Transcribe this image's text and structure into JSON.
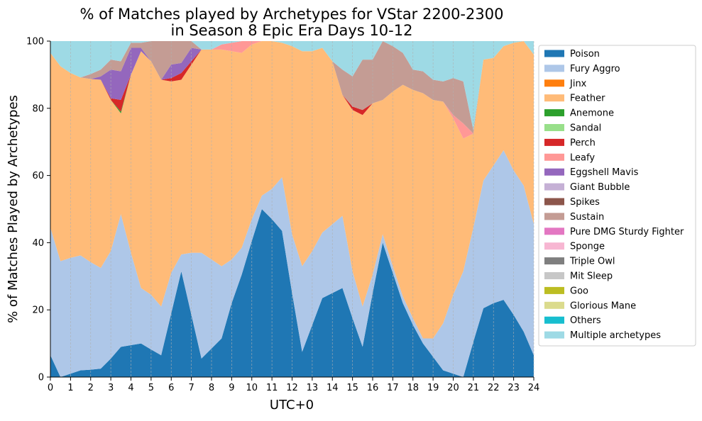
{
  "chart_data": {
    "type": "area",
    "stacked": true,
    "title": [
      "% of Matches played by Archetypes for VStar 2200-2300",
      "in Season 8 Epic Era Days 10-12"
    ],
    "xlabel": "UTC+0",
    "ylabel": "% of Matches Played by Archetypes",
    "xlim": [
      0,
      24
    ],
    "ylim": [
      0,
      100
    ],
    "xticks": [
      "0",
      "1",
      "2",
      "3",
      "4",
      "5",
      "6",
      "7",
      "8",
      "9",
      "10",
      "11",
      "12",
      "13",
      "14",
      "15",
      "16",
      "17",
      "18",
      "19",
      "20",
      "21",
      "22",
      "23",
      "24"
    ],
    "yticks": [
      "0",
      "20",
      "40",
      "60",
      "80",
      "100"
    ],
    "grid": "vertical dashed",
    "legend_position": "right outside",
    "x": [
      0,
      0.5,
      1,
      1.5,
      2,
      2.5,
      3,
      3.5,
      4,
      4.5,
      5,
      5.5,
      6,
      6.5,
      7,
      7.5,
      8,
      8.5,
      9,
      9.5,
      10,
      10.5,
      11,
      11.5,
      12,
      12.5,
      13,
      13.5,
      14,
      14.5,
      15,
      15.5,
      16,
      16.5,
      17,
      17.5,
      18,
      18.5,
      19,
      19.5,
      20,
      20.5,
      21,
      21.5,
      22,
      22.5,
      23,
      23.5,
      24
    ],
    "series": [
      {
        "name": "Poison",
        "color": "#1f77b4",
        "values": [
          6.5,
          0,
          1,
          2,
          2.2,
          2.5,
          5.5,
          9,
          9.5,
          10,
          8.2,
          6.5,
          19,
          31.5,
          18.5,
          5.5,
          8.5,
          11.5,
          22,
          30.5,
          40.5,
          50,
          47,
          43.5,
          25,
          7.5,
          15.5,
          23.5,
          25,
          26.5,
          17.5,
          9,
          25,
          40,
          31,
          22,
          15.5,
          10,
          6,
          2,
          1,
          0,
          10.5,
          20.5,
          22,
          23,
          18.5,
          13.5,
          6.5
        ]
      },
      {
        "name": "Fury Aggro",
        "color": "#aec7e8",
        "values": [
          38,
          34.5,
          34.5,
          34.2,
          32,
          30,
          32,
          39.5,
          27.5,
          16.5,
          16.3,
          14.5,
          12,
          5,
          18.5,
          31.5,
          26.5,
          21.5,
          13,
          8,
          6.5,
          4,
          9,
          16,
          17.5,
          25.5,
          22,
          19.5,
          20.5,
          21.5,
          14,
          12,
          5.5,
          2.5,
          2,
          2,
          2,
          1.5,
          5.5,
          14,
          23.5,
          31.5,
          34,
          38,
          41,
          44.5,
          43,
          43.5,
          39
        ]
      },
      {
        "name": "Jinx",
        "color": "#ff7f0e",
        "values": [
          0,
          0,
          0,
          0,
          0,
          0,
          0,
          0,
          0,
          0,
          0,
          0,
          0,
          0,
          0,
          0,
          0,
          0,
          0,
          0,
          0,
          0,
          0,
          0,
          0,
          0,
          0,
          0,
          0,
          0,
          0,
          0,
          0,
          0,
          0,
          0,
          0,
          0,
          0,
          0,
          0,
          0,
          0,
          0,
          0,
          0,
          0,
          0,
          0
        ]
      },
      {
        "name": "Feather",
        "color": "#ffbb78",
        "values": [
          52,
          58,
          55,
          53,
          54.5,
          56,
          45,
          30,
          53,
          70.5,
          69.5,
          67.5,
          57,
          52,
          56,
          60.5,
          62.5,
          64.5,
          62,
          58,
          52,
          46,
          44,
          40,
          56,
          64,
          59.5,
          55,
          48.5,
          36,
          48,
          57,
          51,
          40,
          52,
          63,
          68,
          73,
          71,
          66,
          52.5,
          39.5,
          28,
          36,
          32,
          31,
          38,
          43,
          50.5
        ]
      },
      {
        "name": "Anemone",
        "color": "#2ca02c",
        "values": [
          0,
          0,
          0,
          0,
          0,
          0,
          0,
          0.5,
          0,
          0,
          0,
          0,
          0,
          0,
          0,
          0,
          0,
          0,
          0,
          0,
          0,
          0,
          0,
          0,
          0,
          0,
          0,
          0,
          0,
          0,
          0,
          0,
          0,
          0,
          0,
          0,
          0,
          0,
          0,
          0,
          0,
          0,
          0,
          0,
          0,
          0,
          0,
          0,
          0
        ]
      },
      {
        "name": "Sandal",
        "color": "#98df8a",
        "values": [
          0,
          0,
          0,
          0,
          0,
          0,
          0,
          0,
          0,
          0,
          0,
          0,
          0,
          0,
          0,
          0,
          0,
          0,
          0,
          0,
          0,
          0,
          0,
          0,
          0,
          0,
          0,
          0,
          0,
          0,
          0,
          0,
          0,
          0,
          0,
          0,
          0,
          0,
          0,
          0,
          0,
          0,
          0,
          0,
          0,
          0,
          0,
          0,
          0
        ]
      },
      {
        "name": "Perch",
        "color": "#d62728",
        "values": [
          0,
          0,
          0,
          0,
          0,
          0,
          0.5,
          3.5,
          0,
          0,
          0,
          0,
          1,
          2,
          1,
          0,
          0,
          0,
          0,
          0,
          0,
          0,
          0,
          0,
          0,
          0,
          0,
          0,
          0,
          0,
          1,
          1.5,
          0,
          0,
          0,
          0,
          0,
          0,
          0,
          0,
          0,
          0,
          0,
          0,
          0,
          0,
          0,
          0,
          0
        ]
      },
      {
        "name": "Leafy",
        "color": "#ff9896",
        "values": [
          0,
          0,
          0,
          0,
          0,
          0,
          0,
          0,
          0,
          0,
          0,
          0,
          0,
          0,
          0,
          0,
          0,
          1.5,
          2.5,
          3.5,
          1,
          0,
          0,
          0,
          0,
          0,
          0,
          0,
          0,
          0,
          0,
          0,
          0,
          0,
          0,
          0,
          0,
          0,
          0,
          0,
          1,
          4.5,
          0,
          0,
          0,
          0,
          0,
          0,
          0
        ]
      },
      {
        "name": "Eggshell Mavis",
        "color": "#9467bd",
        "values": [
          0,
          0,
          0,
          0,
          0,
          1,
          8.5,
          8.5,
          8,
          1,
          0,
          0,
          4,
          3,
          4,
          0,
          0,
          0,
          0,
          0,
          0,
          0,
          0,
          0,
          0,
          0,
          0,
          0,
          0,
          0,
          0,
          0,
          0,
          0,
          0,
          0,
          0,
          0,
          0,
          0,
          0,
          0,
          0,
          0,
          0,
          0,
          0,
          0,
          0
        ]
      },
      {
        "name": "Giant Bubble",
        "color": "#c5b0d5",
        "values": [
          0,
          0,
          0,
          0,
          0,
          0,
          0,
          0,
          0,
          0,
          0,
          0,
          0,
          0,
          0,
          0,
          0,
          0,
          0,
          0,
          0,
          0,
          0,
          0,
          0,
          0,
          0,
          0,
          0,
          0,
          0,
          0,
          0,
          0,
          0,
          0,
          0,
          0,
          0,
          0,
          0,
          0,
          0,
          0,
          0,
          0,
          0,
          0,
          0
        ]
      },
      {
        "name": "Spikes",
        "color": "#8c564b",
        "values": [
          0,
          0,
          0,
          0,
          0,
          0,
          0,
          0,
          0,
          0,
          0,
          0,
          0,
          0,
          0,
          0,
          0,
          0,
          0,
          0,
          0,
          0,
          0,
          0,
          0,
          0,
          0,
          0,
          0,
          0,
          0,
          0,
          0,
          0,
          0,
          0,
          0,
          0,
          0,
          0,
          0,
          0,
          0,
          0,
          0,
          0,
          0,
          0,
          0
        ]
      },
      {
        "name": "Sustain",
        "color": "#c49c94",
        "values": [
          0,
          0,
          0,
          0,
          1.5,
          2,
          3,
          3,
          1.5,
          1.5,
          6,
          11.5,
          7,
          6.5,
          2.5,
          0,
          0,
          0,
          0,
          0,
          0,
          0,
          0,
          0,
          0,
          0,
          0,
          0,
          0,
          7.5,
          9,
          15,
          13,
          17.5,
          13.5,
          9.5,
          6,
          6.5,
          6,
          6,
          11,
          12.5,
          1,
          0,
          0,
          0,
          0,
          0,
          0
        ]
      },
      {
        "name": "Pure DMG Sturdy Fighter",
        "color": "#e377c2",
        "values": [
          0,
          0,
          0,
          0,
          0,
          0,
          0,
          0,
          0,
          0,
          0,
          0,
          0,
          0,
          0,
          0,
          0,
          0,
          0,
          0,
          0,
          0,
          0,
          0,
          0,
          0,
          0,
          0,
          0,
          0,
          0,
          0,
          0,
          0,
          0,
          0,
          0,
          0,
          0,
          0,
          0,
          0,
          0,
          0,
          0,
          0,
          0,
          0,
          0
        ]
      },
      {
        "name": "Sponge",
        "color": "#f7b6d2",
        "values": [
          0,
          0,
          0,
          0,
          0,
          0,
          0,
          0,
          0,
          0,
          0,
          0,
          0,
          0,
          0,
          0,
          0,
          0,
          0,
          0,
          0,
          0,
          0,
          0,
          0,
          0,
          0,
          0,
          0,
          0,
          0,
          0,
          0,
          0,
          0,
          0,
          0,
          0,
          0,
          0,
          0,
          0,
          0,
          0,
          0,
          0,
          0,
          0,
          0
        ]
      },
      {
        "name": "Triple Owl",
        "color": "#7f7f7f",
        "values": [
          0,
          0,
          0,
          0,
          0,
          0,
          0,
          0,
          0,
          0,
          0,
          0,
          0,
          0,
          0,
          0,
          0,
          0,
          0,
          0,
          0,
          0,
          0,
          0,
          0,
          0,
          0,
          0,
          0,
          0,
          0,
          0,
          0,
          0,
          0,
          0,
          0,
          0,
          0,
          0,
          0,
          0,
          0,
          0,
          0,
          0,
          0,
          0,
          0
        ]
      },
      {
        "name": "Mit Sleep",
        "color": "#c7c7c7",
        "values": [
          0,
          0,
          0,
          0,
          0,
          0,
          0,
          0,
          0,
          0,
          0,
          0,
          0,
          0,
          0,
          0,
          0,
          0,
          0,
          0,
          0,
          0,
          0,
          0,
          0,
          0,
          0,
          0,
          0,
          0,
          0,
          0,
          0,
          0,
          0,
          0,
          0,
          0,
          0,
          0,
          0,
          0,
          0,
          0,
          0,
          0,
          0,
          0,
          0
        ]
      },
      {
        "name": "Goo",
        "color": "#bcbd22",
        "values": [
          0,
          0,
          0,
          0,
          0,
          0,
          0,
          0,
          0,
          0,
          0,
          0,
          0,
          0,
          0,
          0,
          0,
          0,
          0,
          0,
          0,
          0,
          0,
          0,
          0,
          0,
          0,
          0,
          0,
          0,
          0,
          0,
          0,
          0,
          0,
          0,
          0,
          0,
          0,
          0,
          0,
          0,
          0,
          0,
          0,
          0,
          0,
          0,
          0
        ]
      },
      {
        "name": "Glorious Mane",
        "color": "#dbdb8d",
        "values": [
          0,
          0,
          0,
          0,
          0,
          0,
          0,
          0,
          0,
          0,
          0,
          0,
          0,
          0,
          0,
          0,
          0,
          0,
          0,
          0,
          0,
          0,
          0,
          0,
          0,
          0,
          0,
          0,
          0,
          0,
          0,
          0,
          0,
          0,
          0,
          0,
          0,
          0,
          0,
          0,
          0,
          0,
          0,
          0,
          0,
          0,
          0,
          0,
          0
        ]
      },
      {
        "name": "Others",
        "color": "#17becf",
        "values": [
          0,
          0,
          0,
          0,
          0,
          0,
          0,
          0,
          0,
          0,
          0,
          0,
          0,
          0,
          0,
          0,
          0,
          0,
          0,
          0,
          0,
          0,
          0,
          0,
          0,
          0,
          0,
          0,
          0,
          0,
          0,
          0,
          0,
          0,
          0,
          0,
          0,
          0,
          0,
          0,
          0,
          0,
          0,
          0,
          0,
          0,
          0,
          0,
          0
        ]
      },
      {
        "name": "Multiple archetypes",
        "color": "#9edae5",
        "values": [
          3.5,
          7.5,
          9.5,
          10.8,
          10.3,
          8.5,
          5.5,
          6,
          0.5,
          1,
          0,
          0,
          0,
          0,
          0,
          2.5,
          2.5,
          1,
          0.5,
          0,
          0,
          0,
          0,
          0.5,
          1.5,
          3,
          3,
          2,
          6,
          8.5,
          10.5,
          5.5,
          5.5,
          0,
          1.5,
          3.5,
          8.5,
          9,
          11.5,
          12,
          11,
          12,
          26.5,
          5.5,
          5,
          1.5,
          0.5,
          0,
          4
        ]
      }
    ]
  }
}
